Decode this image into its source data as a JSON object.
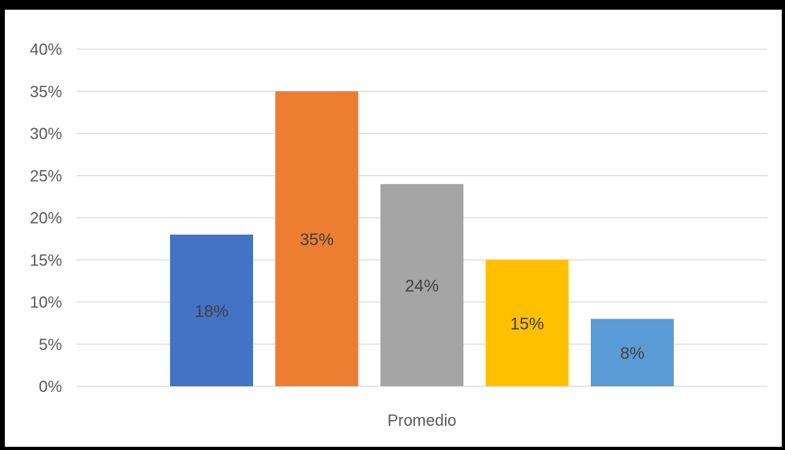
{
  "chart_data": {
    "type": "bar",
    "categories": [
      "Promedio"
    ],
    "series": [
      {
        "values": [
          0.18
        ],
        "label": "18%",
        "color": "#4472C4"
      },
      {
        "values": [
          0.35
        ],
        "label": "35%",
        "color": "#ED7D31"
      },
      {
        "values": [
          0.24
        ],
        "label": "24%",
        "color": "#A5A5A5"
      },
      {
        "values": [
          0.15
        ],
        "label": "15%",
        "color": "#FFC000"
      },
      {
        "values": [
          0.08
        ],
        "label": "8%",
        "color": "#5B9BD5"
      }
    ],
    "title": "",
    "xlabel": "",
    "ylabel": "",
    "ylim": [
      0,
      0.4
    ],
    "y_ticks": [
      {
        "value": 0,
        "label": "0%"
      },
      {
        "value": 0.05,
        "label": "5%"
      },
      {
        "value": 0.1,
        "label": "10%"
      },
      {
        "value": 0.15,
        "label": "15%"
      },
      {
        "value": 0.2,
        "label": "20%"
      },
      {
        "value": 0.25,
        "label": "25%"
      },
      {
        "value": 0.3,
        "label": "30%"
      },
      {
        "value": 0.35,
        "label": "35%"
      },
      {
        "value": 0.4,
        "label": "40%"
      }
    ],
    "grid": true,
    "legend": "none",
    "gridline_color": "#D9D9D9"
  }
}
